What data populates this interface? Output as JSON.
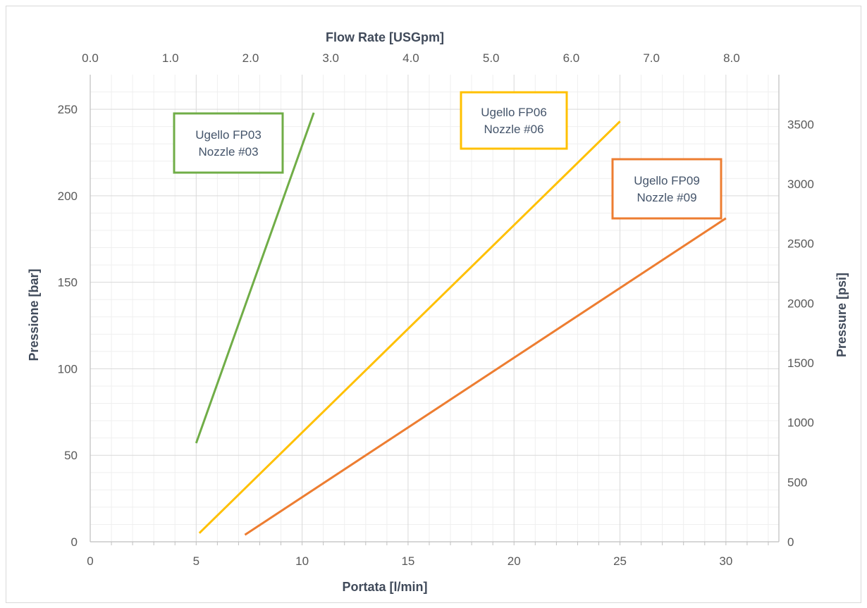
{
  "chart_data": {
    "type": "line",
    "xlabel": "Portata [l/min]",
    "ylabel": "Pressione [bar]",
    "x2label": "Flow Rate [USGpm]",
    "y2label": "Pressure [psi]",
    "xlim": [
      0,
      32.5
    ],
    "ylim": [
      0,
      270
    ],
    "x2lim": [
      0,
      8.59
    ],
    "y2lim": [
      0,
      3916
    ],
    "x_ticks": [
      "0",
      "5",
      "10",
      "15",
      "20",
      "25",
      "30"
    ],
    "y_ticks": [
      "0",
      "50",
      "100",
      "150",
      "200",
      "250"
    ],
    "x2_ticks": [
      "0.0",
      "1.0",
      "2.0",
      "3.0",
      "4.0",
      "5.0",
      "6.0",
      "7.0",
      "8.0"
    ],
    "y2_ticks": [
      "0",
      "500",
      "1000",
      "1500",
      "2000",
      "2500",
      "3000",
      "3500"
    ],
    "grid": true,
    "series": [
      {
        "x": [
          5.0,
          10.55
        ],
        "y": [
          57,
          248
        ],
        "color": "#70ad47"
      },
      {
        "x": [
          5.15,
          25.0
        ],
        "y": [
          5,
          243
        ],
        "color": "#ffc000"
      },
      {
        "x": [
          7.3,
          30.0
        ],
        "y": [
          4,
          187
        ],
        "color": "#ed7d31"
      }
    ],
    "annotations": [
      {
        "lines": [
          "Ugello FP03",
          "Nozzle #03"
        ],
        "color": "#70ad47"
      },
      {
        "lines": [
          "Ugello FP06",
          "Nozzle #06"
        ],
        "color": "#ffc000"
      },
      {
        "lines": [
          "Ugello FP09",
          "Nozzle #09"
        ],
        "color": "#ed7d31"
      }
    ]
  }
}
